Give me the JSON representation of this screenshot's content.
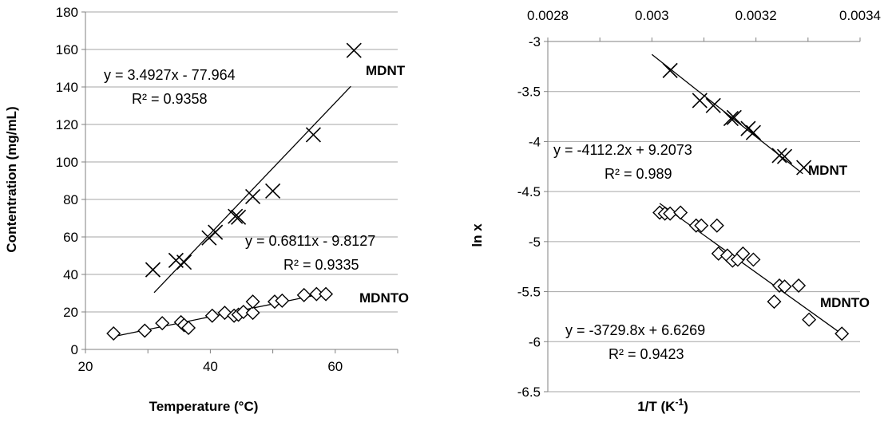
{
  "chart_data": [
    {
      "type": "scatter",
      "title": "",
      "xlabel": "Temperature (°C)",
      "ylabel": "Contentration (mg/mL)",
      "xlim": [
        20,
        70
      ],
      "ylim": [
        0,
        180
      ],
      "x_ticks": [
        "20",
        "40",
        "60"
      ],
      "y_ticks": [
        "0",
        "20",
        "40",
        "60",
        "80",
        "100",
        "120",
        "140",
        "160",
        "180"
      ],
      "grid": "horizontal",
      "series": [
        {
          "name": "MDNT",
          "marker": "x",
          "points": [
            [
              30.8,
              42.5
            ],
            [
              34.5,
              47.5
            ],
            [
              35.8,
              46.5
            ],
            [
              39.8,
              59.5
            ],
            [
              40.8,
              62.5
            ],
            [
              44.0,
              71.0
            ],
            [
              44.5,
              70.5
            ],
            [
              46.8,
              81.5
            ],
            [
              50.0,
              84.5
            ],
            [
              56.5,
              114.5
            ],
            [
              63.0,
              159.5
            ]
          ],
          "trendline": {
            "slope": 3.4927,
            "intercept": -77.964,
            "x_range": [
              31.0,
              62.5
            ]
          },
          "equation": "y = 3.4927x - 77.964",
          "r2": "R² = 0.9358"
        },
        {
          "name": "MDNTO",
          "marker": "diamond",
          "points": [
            [
              24.5,
              8.5
            ],
            [
              29.5,
              10.0
            ],
            [
              32.3,
              14.0
            ],
            [
              35.3,
              14.5
            ],
            [
              35.8,
              13.0
            ],
            [
              36.5,
              11.5
            ],
            [
              40.3,
              18.0
            ],
            [
              42.3,
              19.5
            ],
            [
              43.8,
              18.0
            ],
            [
              44.5,
              18.5
            ],
            [
              45.3,
              20.0
            ],
            [
              46.8,
              19.5
            ],
            [
              46.8,
              25.5
            ],
            [
              50.3,
              25.5
            ],
            [
              51.5,
              26.0
            ],
            [
              55.0,
              29.0
            ],
            [
              57.0,
              29.5
            ],
            [
              58.5,
              29.5
            ]
          ],
          "trendline": {
            "slope": 0.6811,
            "intercept": -9.8127,
            "x_range": [
              24.5,
              58.5
            ]
          },
          "equation": "y = 0.6811x - 9.8127",
          "r2": "R² = 0.9335"
        }
      ]
    },
    {
      "type": "scatter",
      "title": "",
      "xlabel": "1/T (K⁻¹)",
      "ylabel": "ln x",
      "xlim": [
        0.0028,
        0.0034
      ],
      "ylim": [
        -6.5,
        -3
      ],
      "x_axis_position": "top",
      "x_ticks": [
        "0.0028",
        "0.003",
        "0.0032",
        "0.0034"
      ],
      "y_ticks": [
        "-3",
        "-3.5",
        "-4",
        "-4.5",
        "-5",
        "-5.5",
        "-6",
        "-6.5"
      ],
      "grid": "horizontal",
      "series": [
        {
          "name": "MDNT",
          "marker": "x",
          "points": [
            [
              0.003035,
              -3.29
            ],
            [
              0.003092,
              -3.59
            ],
            [
              0.003118,
              -3.64
            ],
            [
              0.003152,
              -3.77
            ],
            [
              0.003158,
              -3.76
            ],
            [
              0.003185,
              -3.87
            ],
            [
              0.003195,
              -3.91
            ],
            [
              0.003245,
              -4.14
            ],
            [
              0.003255,
              -4.15
            ],
            [
              0.003292,
              -4.26
            ]
          ],
          "trendline": {
            "slope": -4112.2,
            "intercept": 9.2073,
            "x_range": [
              0.003,
              0.00329
            ]
          },
          "equation": "y = -4112.2x + 9.2073",
          "r2": "R² = 0.989"
        },
        {
          "name": "MDNTO",
          "marker": "diamond",
          "points": [
            [
              0.003015,
              -4.71
            ],
            [
              0.003025,
              -4.72
            ],
            [
              0.003035,
              -4.72
            ],
            [
              0.003055,
              -4.71
            ],
            [
              0.003085,
              -4.84
            ],
            [
              0.003095,
              -4.84
            ],
            [
              0.003125,
              -4.84
            ],
            [
              0.003128,
              -5.12
            ],
            [
              0.003145,
              -5.14
            ],
            [
              0.003155,
              -5.19
            ],
            [
              0.003165,
              -5.18
            ],
            [
              0.003175,
              -5.12
            ],
            [
              0.003195,
              -5.18
            ],
            [
              0.003235,
              -5.6
            ],
            [
              0.003245,
              -5.44
            ],
            [
              0.003255,
              -5.45
            ],
            [
              0.003282,
              -5.44
            ],
            [
              0.003302,
              -5.78
            ],
            [
              0.003365,
              -5.92
            ]
          ],
          "trendline": {
            "slope": -3729.8,
            "intercept": 6.6269,
            "x_range": [
              0.003015,
              0.00337
            ]
          },
          "equation": "y = -3729.8x + 6.6269",
          "r2": "R² = 0.9423"
        }
      ]
    }
  ]
}
